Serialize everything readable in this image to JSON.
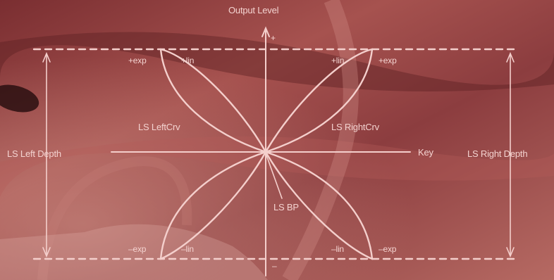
{
  "diagram": {
    "y_axis_label": "Output Level",
    "y_plus": "+",
    "y_minus": "–",
    "x_axis_label": "Key",
    "left_depth_label": "LS Left Depth",
    "right_depth_label": "LS Right Depth",
    "left_curve_label": "LS LeftCrv",
    "right_curve_label": "LS RightCrv",
    "breakpoint_label": "LS BP",
    "top_left_exp": "+exp",
    "top_left_lin": "+lin",
    "top_right_lin": "+lin",
    "top_right_exp": "+exp",
    "bottom_left_exp": "–exp",
    "bottom_left_lin": "–lin",
    "bottom_right_lin": "–lin",
    "bottom_right_exp": "–exp"
  },
  "colors": {
    "line": "#f4cfcc",
    "background": "#8a3a3c"
  }
}
